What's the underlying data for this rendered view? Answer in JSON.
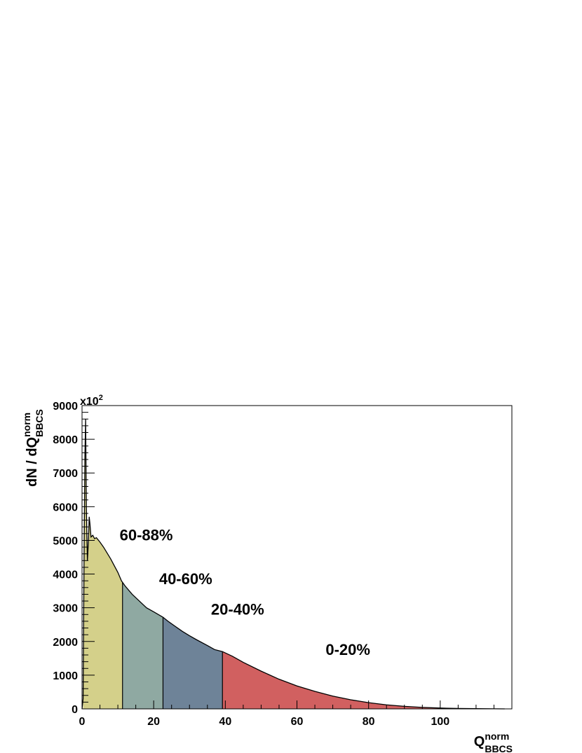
{
  "chart_data": {
    "type": "area",
    "title": "",
    "xlabel": {
      "base": "Q",
      "sup": "norm",
      "sub": "BBCS"
    },
    "ylabel": {
      "prefix": "dN / dQ",
      "sup": "norm",
      "sub": "BBCS"
    },
    "y_multiplier": {
      "base": "x10",
      "exp": "2"
    },
    "xlim": [
      0,
      120
    ],
    "ylim": [
      0,
      9000
    ],
    "x_ticks": [
      0,
      20,
      40,
      60,
      80,
      100
    ],
    "y_ticks": [
      0,
      1000,
      2000,
      3000,
      4000,
      5000,
      6000,
      7000,
      8000,
      9000
    ],
    "x_tick_labels": [
      "0",
      "20",
      "40",
      "60",
      "80",
      "100"
    ],
    "y_tick_labels": [
      "0",
      "1000",
      "2000",
      "3000",
      "4000",
      "5000",
      "6000",
      "7000",
      "8000",
      "9000"
    ],
    "grid": false,
    "curve": {
      "x": [
        0,
        0.3,
        0.6,
        0.8,
        1.0,
        1.2,
        1.5,
        1.8,
        2.0,
        2.2,
        2.5,
        3.0,
        3.5,
        4,
        5,
        6,
        8,
        10,
        11,
        12,
        14,
        16,
        18,
        20,
        22.6,
        24,
        26,
        28,
        30,
        32,
        35,
        37,
        39.2,
        42,
        45,
        50,
        55,
        60,
        65,
        70,
        75,
        80,
        85,
        90,
        95,
        100,
        105,
        110,
        115,
        118
      ],
      "y": [
        0,
        300,
        5000,
        7500,
        8600,
        6000,
        4400,
        5000,
        5700,
        5500,
        5100,
        5150,
        5050,
        5080,
        4950,
        4800,
        4450,
        4050,
        3800,
        3650,
        3400,
        3200,
        3000,
        2880,
        2720,
        2600,
        2450,
        2300,
        2170,
        2050,
        1880,
        1760,
        1700,
        1560,
        1380,
        1120,
        880,
        680,
        520,
        380,
        270,
        185,
        120,
        75,
        45,
        25,
        12,
        6,
        2,
        0
      ]
    },
    "regions": [
      {
        "name": "60-88%",
        "x_range": [
          0.3,
          11.3
        ],
        "color": "#d4d08a"
      },
      {
        "name": "40-60%",
        "x_range": [
          11.3,
          22.6
        ],
        "color": "#8fa9a2"
      },
      {
        "name": "20-40%",
        "x_range": [
          22.6,
          39.2
        ],
        "color": "#6e8398"
      },
      {
        "name": "0-20%",
        "x_range": [
          39.2,
          118
        ],
        "color": "#d16060"
      }
    ],
    "region_labels": [
      {
        "text": "60-88%",
        "x": 10.5,
        "y": 5000
      },
      {
        "text": "40-60%",
        "x": 21.5,
        "y": 3700
      },
      {
        "text": "20-40%",
        "x": 36,
        "y": 2800
      },
      {
        "text": "0-20%",
        "x": 68,
        "y": 1600
      }
    ]
  }
}
